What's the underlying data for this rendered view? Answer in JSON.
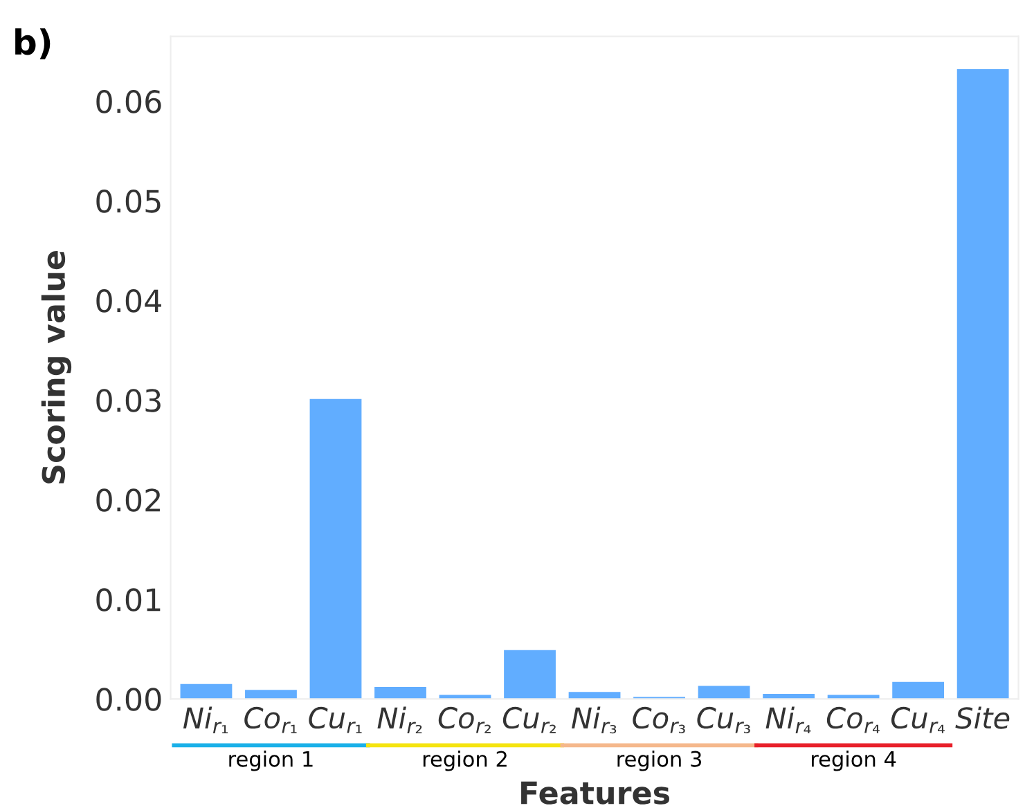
{
  "chart_data": {
    "type": "bar",
    "title": "b)",
    "xlabel": "Features",
    "ylabel": "Scoring value",
    "categories": [
      "Ni$_{r₁}$",
      "Co$_{r₁}$",
      "Cu$_{r₁}$",
      "Ni$_{r₂}$",
      "Co$_{r₂}$",
      "Cu$_{r₂}$",
      "Ni$_{r₃}$",
      "Co$_{r₃}$",
      "Cu$_{r₃}$",
      "Ni$_{r₄}$",
      "Co$_{r₄}$",
      "Cu$_{r₄}$",
      "Site"
    ],
    "values": [
      0.0015,
      0.0009,
      0.0301,
      0.0012,
      0.0004,
      0.0049,
      0.0007,
      0.0002,
      0.0013,
      0.0005,
      0.0004,
      0.0017,
      0.0632
    ],
    "color": "#61adff",
    "ylim": [
      0,
      0.0665
    ],
    "yticks": [
      {
        "value": 0,
        "label": "0.00"
      },
      {
        "value": 0.01,
        "label": "0.01"
      },
      {
        "value": 0.02,
        "label": "0.02"
      },
      {
        "value": 0.03,
        "label": "0.03"
      },
      {
        "value": 0.04,
        "label": "0.04"
      },
      {
        "value": 0.05,
        "label": "0.05"
      },
      {
        "value": 0.06,
        "label": "0.06"
      }
    ],
    "annotations": [
      "region 1",
      "region 2",
      "region 3",
      "region 4"
    ],
    "grid": false,
    "legend": false
  }
}
